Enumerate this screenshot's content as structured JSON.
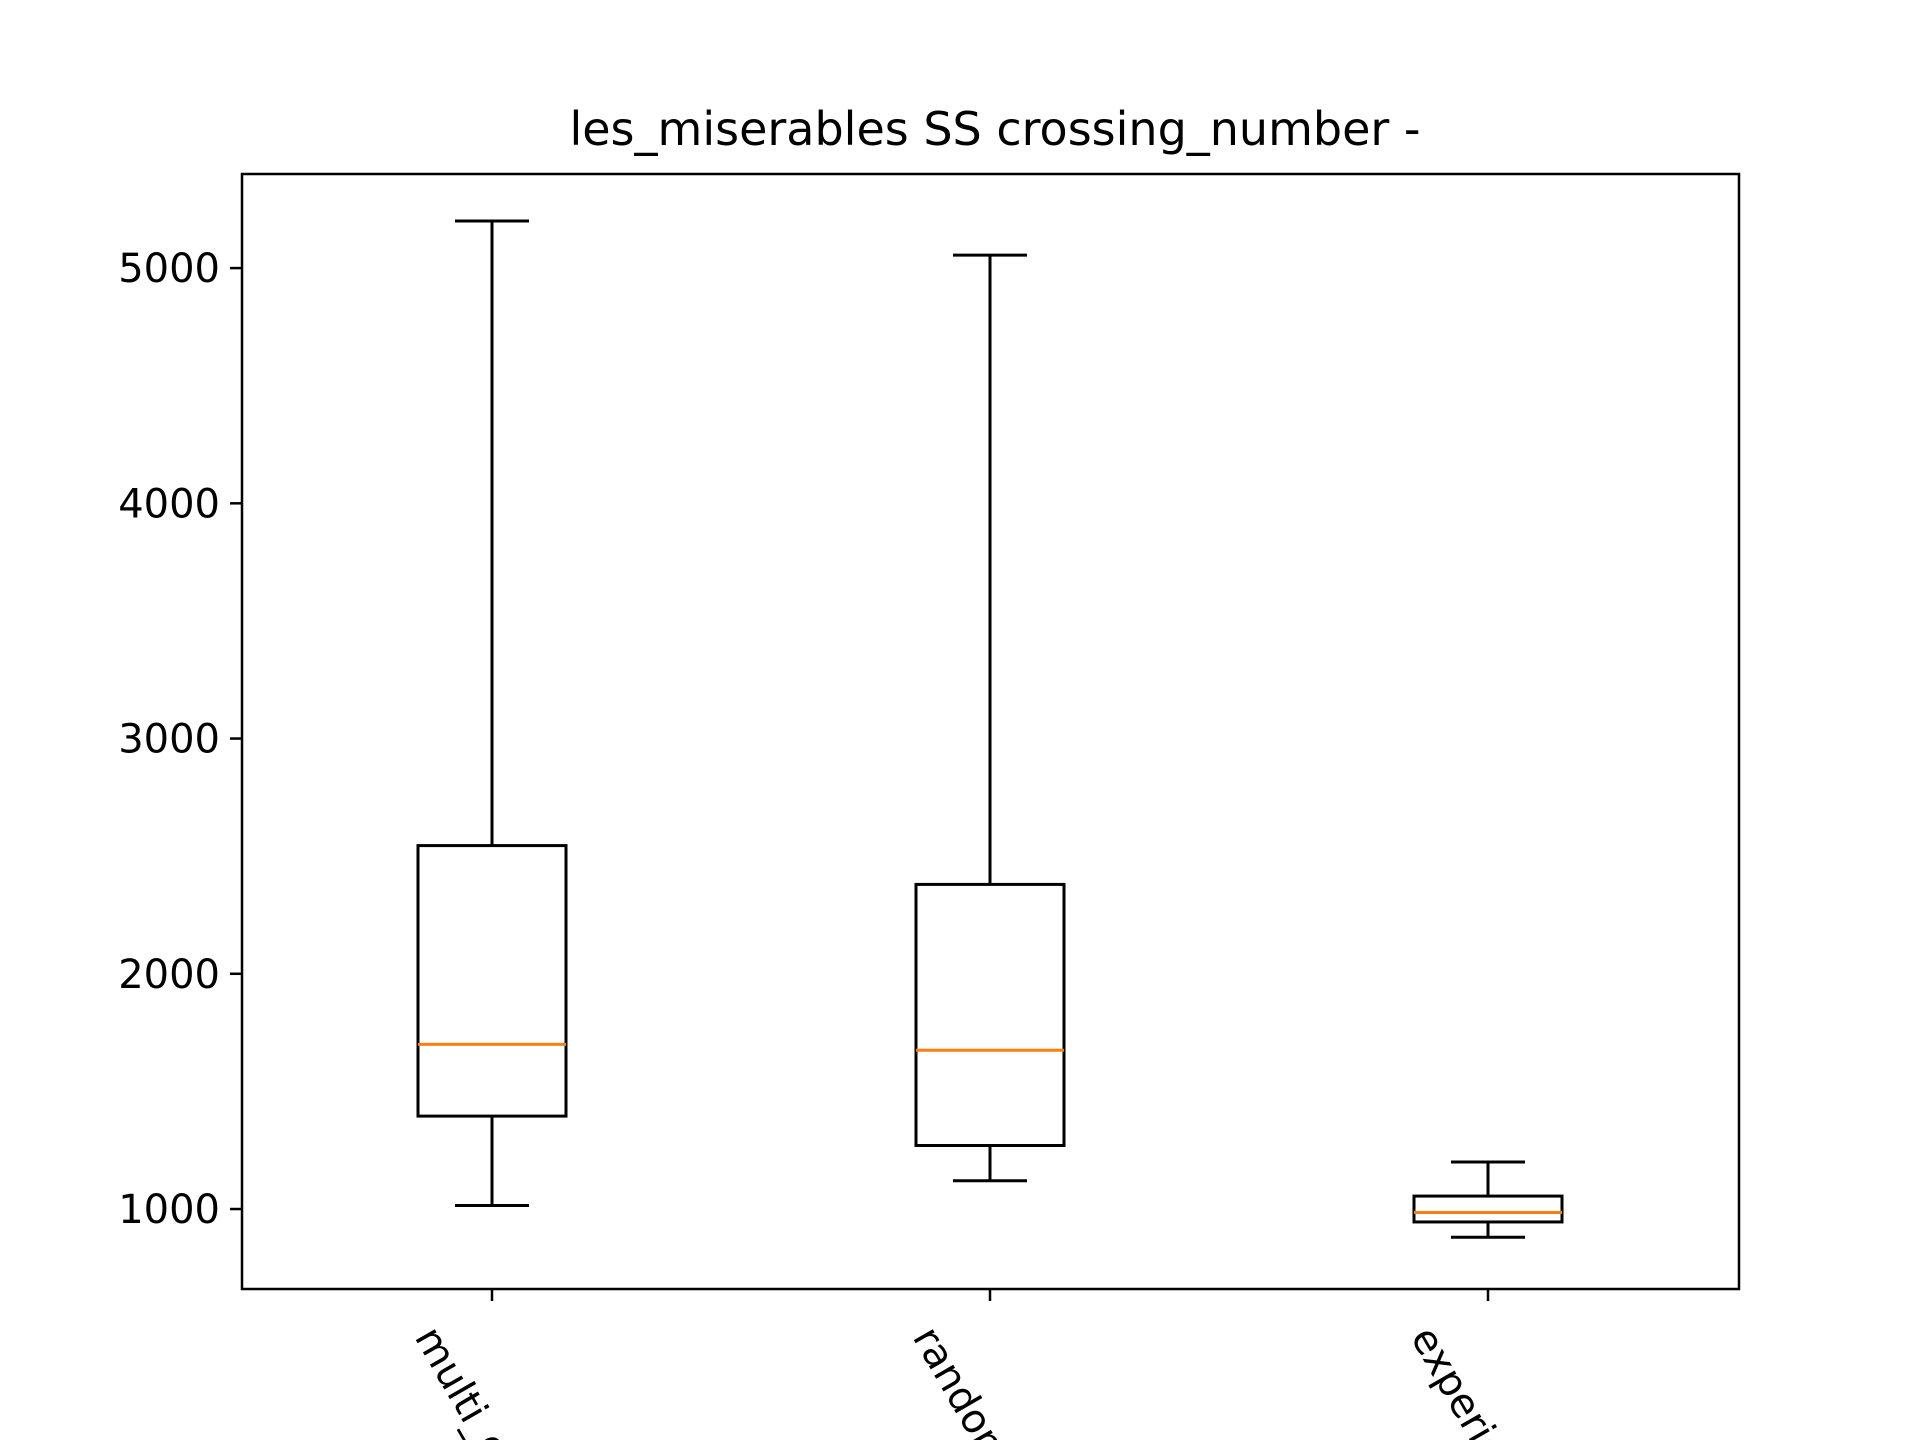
{
  "chart_data": {
    "type": "box",
    "title": "les_miserables SS crossing_number -",
    "xlabel": "",
    "ylabel": "",
    "ylim": [
      660,
      5400
    ],
    "yticks": [
      1000,
      2000,
      3000,
      4000,
      5000
    ],
    "ytick_labels": [
      "1000",
      "2000",
      "3000",
      "4000",
      "5000"
    ],
    "categories": [
      "multi_o",
      "randon",
      "experie"
    ],
    "boxes": [
      {
        "whislo": 1015,
        "q1": 1395,
        "med": 1700,
        "q3": 2545,
        "whishi": 5200
      },
      {
        "whislo": 1120,
        "q1": 1270,
        "med": 1675,
        "q3": 2380,
        "whishi": 5055
      },
      {
        "whislo": 880,
        "q1": 945,
        "med": 985,
        "q3": 1055,
        "whishi": 1200
      }
    ],
    "grid": false,
    "colors": {
      "box": "#000000",
      "median": "#ff7f0e"
    }
  }
}
